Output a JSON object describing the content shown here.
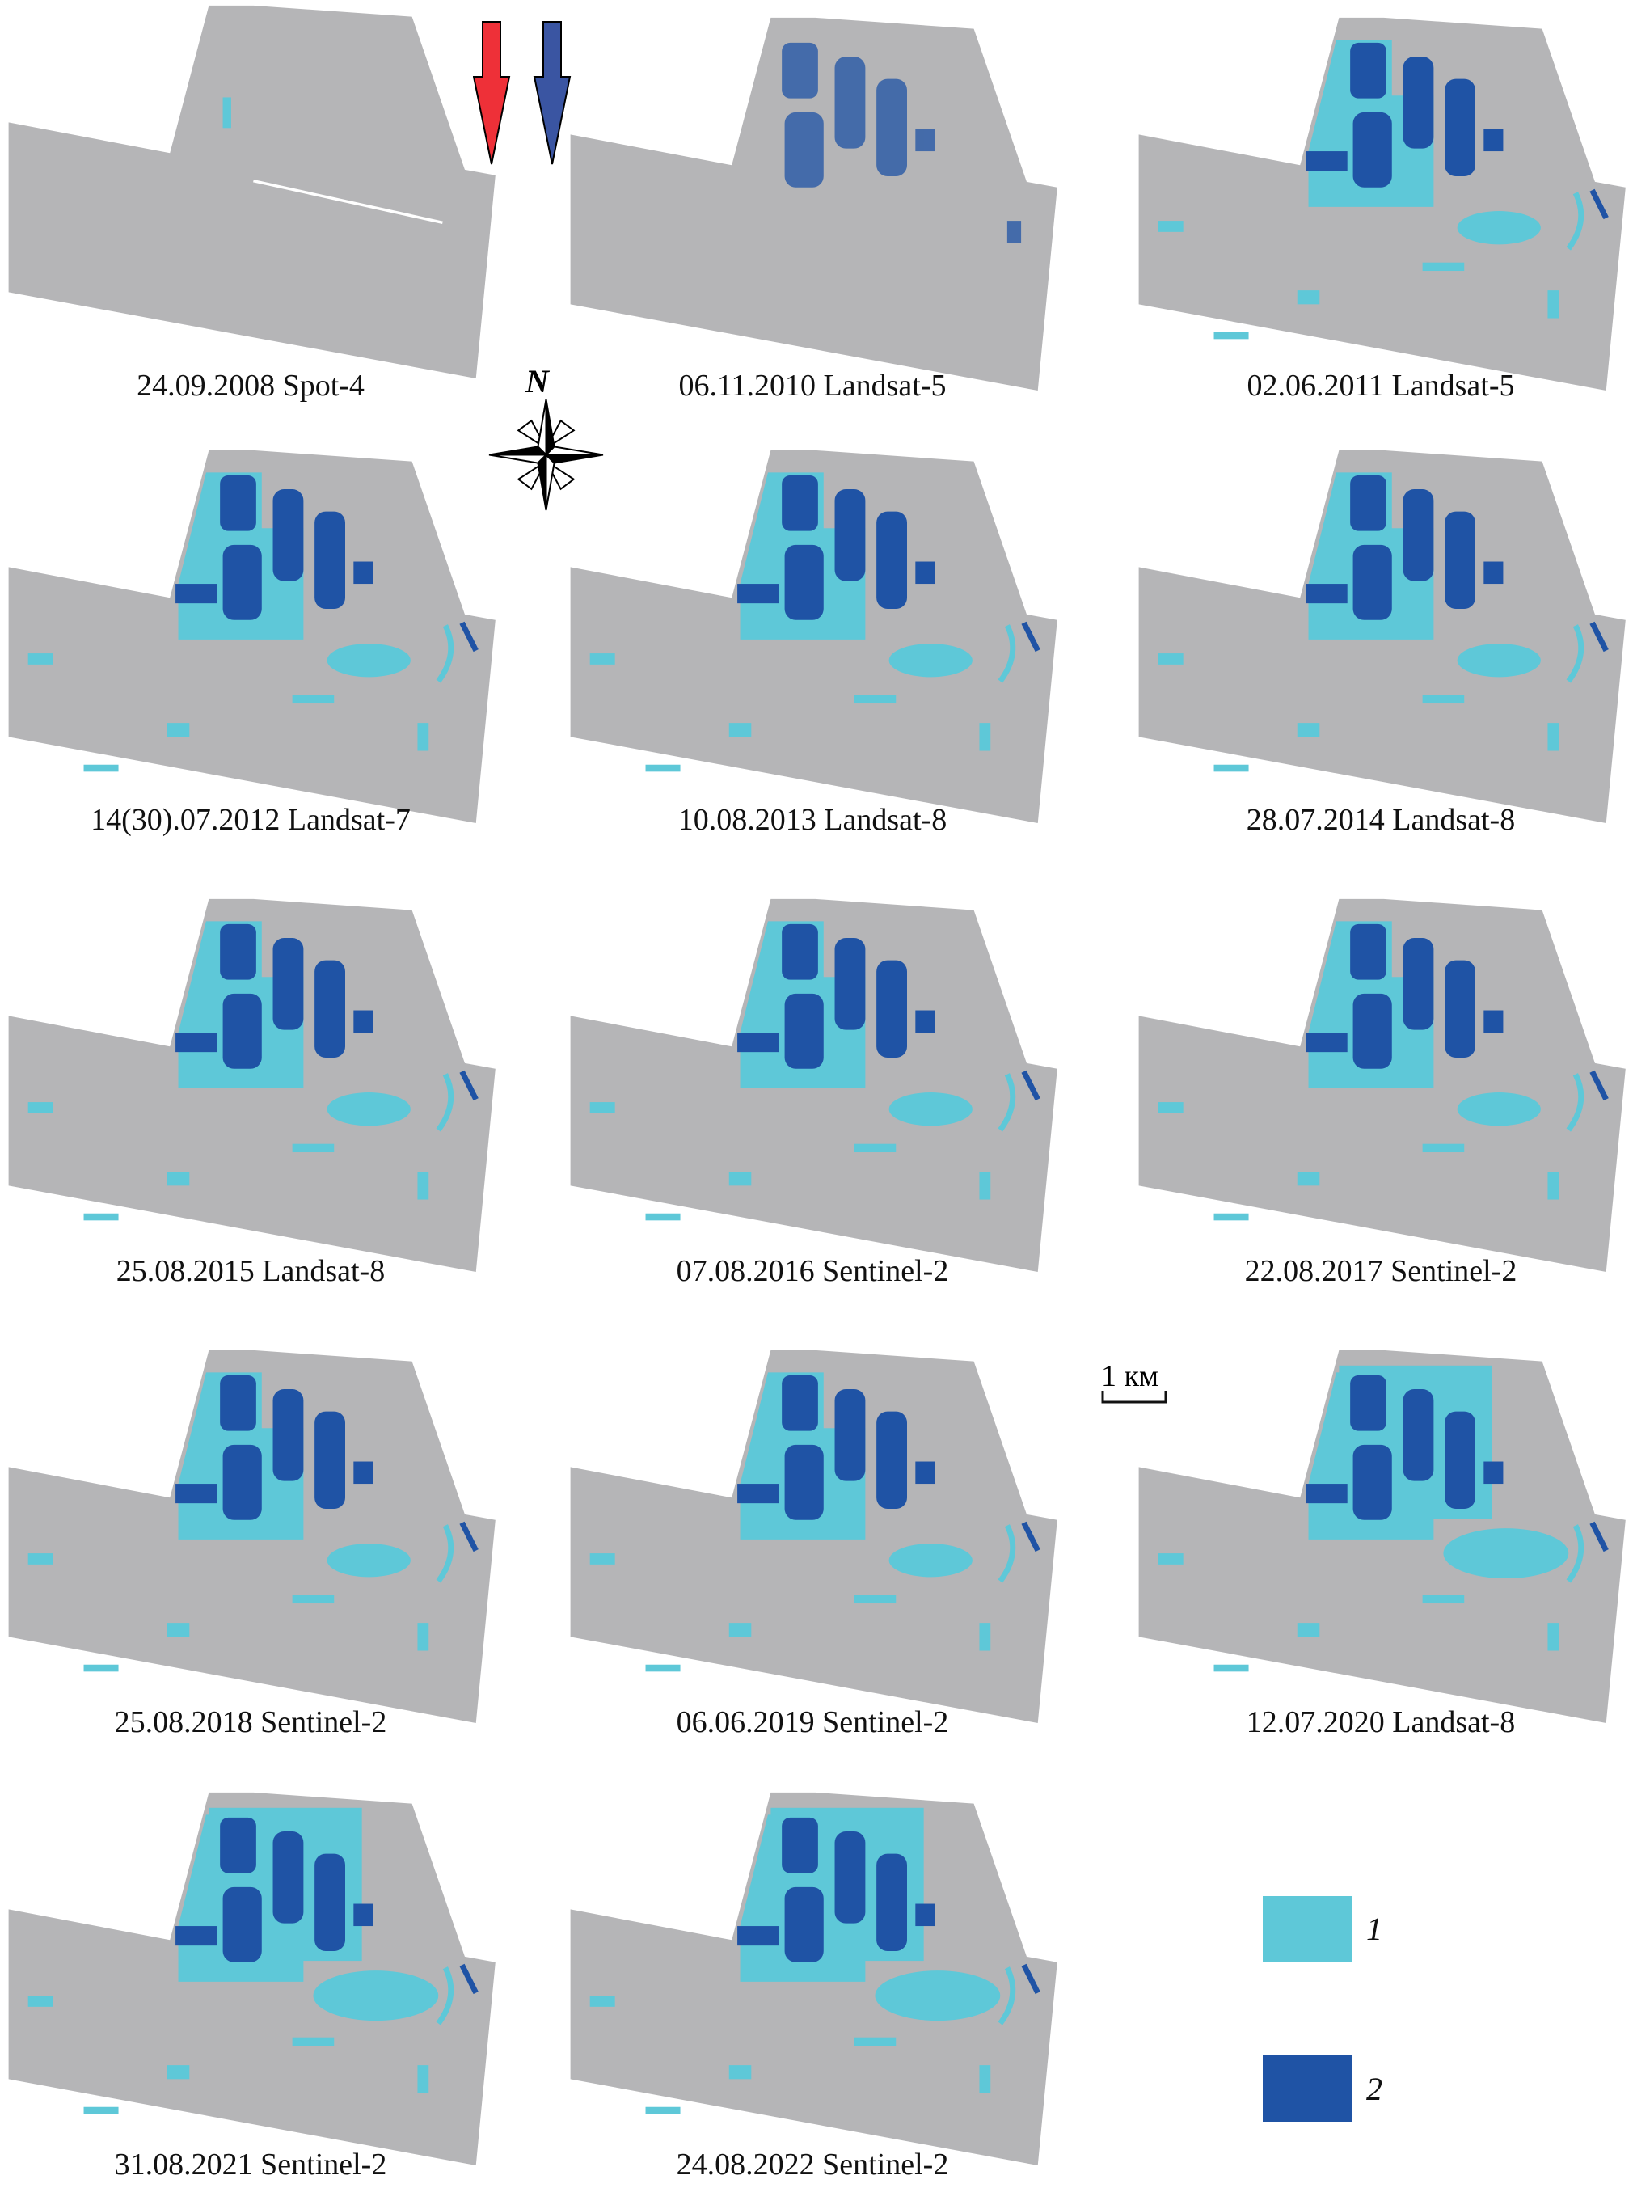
{
  "panels": [
    {
      "caption": "24.09.2008 Spot-4"
    },
    {
      "caption": "06.11.2010 Landsat-5"
    },
    {
      "caption": "02.06.2011 Landsat-5"
    },
    {
      "caption": "14(30).07.2012 Landsat-7"
    },
    {
      "caption": "10.08.2013 Landsat-8"
    },
    {
      "caption": "28.07.2014 Landsat-8"
    },
    {
      "caption": "25.08.2015 Landsat-8"
    },
    {
      "caption": "07.08.2016 Sentinel-2"
    },
    {
      "caption": "22.08.2017 Sentinel-2"
    },
    {
      "caption": "25.08.2018 Sentinel-2"
    },
    {
      "caption": "06.06.2019 Sentinel-2"
    },
    {
      "caption": "12.07.2020 Landsat-8"
    },
    {
      "caption": "31.08.2021 Sentinel-2"
    },
    {
      "caption": "24.08.2022 Sentinel-2"
    }
  ],
  "compass": {
    "label": "N",
    "icon": "compass-rose-icon"
  },
  "scale_bar": {
    "label": "1 км"
  },
  "arrows": {
    "red": "#ee3038",
    "blue": "#3a55a2"
  },
  "legend": {
    "items": [
      {
        "label": "1",
        "color": "#5ec8d8"
      },
      {
        "label": "2",
        "color": "#1f53a5"
      }
    ]
  },
  "colors": {
    "land": "#b5b5b7",
    "background": "#ffffff"
  }
}
